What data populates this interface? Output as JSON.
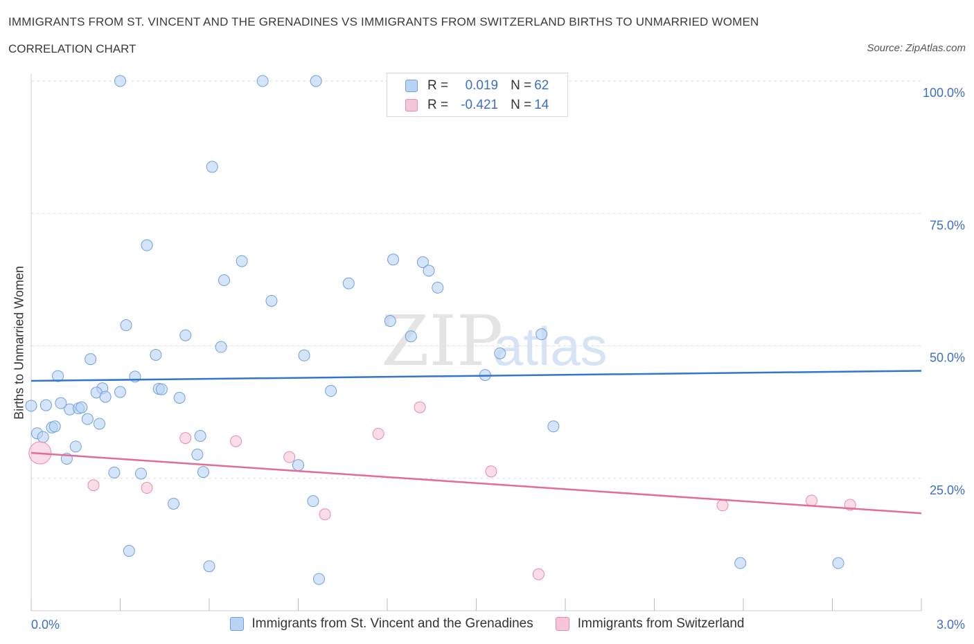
{
  "title": "IMMIGRANTS FROM ST. VINCENT AND THE GRENADINES VS IMMIGRANTS FROM SWITZERLAND BIRTHS TO UNMARRIED WOMEN",
  "subtitle": "CORRELATION CHART",
  "source": "Source: ZipAtlas.com",
  "watermark": {
    "part1": "ZIP",
    "part2": "atlas"
  },
  "legend": {
    "rows": [
      {
        "r_label": "R = ",
        "r_value": "0.019",
        "n_label": "N = ",
        "n_value": "62"
      },
      {
        "r_label": "R = ",
        "r_value": "-0.421",
        "n_label": "N = ",
        "n_value": "14"
      }
    ]
  },
  "colors": {
    "blue_fill": "#b9d3f5",
    "blue_stroke": "#6f9fe0",
    "blue_line": "#3274cf",
    "pink_fill": "#f7c6d6",
    "pink_stroke": "#e98aa8",
    "pink_line": "#e36b95",
    "axis_text": "#3b6fc6",
    "grid": "#dddddd"
  },
  "chart_data": {
    "type": "scatter",
    "title": "IMMIGRANTS FROM ST. VINCENT AND THE GRENADINES VS IMMIGRANTS FROM SWITZERLAND BIRTHS TO UNMARRIED WOMEN",
    "xlabel": "",
    "ylabel": "Births to Unmarried Women",
    "xlim": [
      0,
      3
    ],
    "ylim": [
      0,
      100
    ],
    "x_tick_labels": [
      "0.0%",
      "3.0%"
    ],
    "y_ticks": [
      25,
      50,
      75,
      100
    ],
    "y_tick_labels": [
      "25.0%",
      "50.0%",
      "75.0%",
      "100.0%"
    ],
    "series": [
      {
        "name": "Immigrants from St. Vincent and the Grenadines",
        "color": "blue",
        "trend": {
          "x": [
            0,
            3
          ],
          "y": [
            43.4,
            45.3
          ]
        },
        "points": [
          {
            "x": 0.3,
            "y": 100
          },
          {
            "x": 0.78,
            "y": 100
          },
          {
            "x": 0.96,
            "y": 100
          },
          {
            "x": 0.61,
            "y": 83.8
          },
          {
            "x": 0.39,
            "y": 69.0
          },
          {
            "x": 0.71,
            "y": 66.0
          },
          {
            "x": 1.22,
            "y": 66.3
          },
          {
            "x": 1.32,
            "y": 65.8
          },
          {
            "x": 1.34,
            "y": 64.2
          },
          {
            "x": 0.65,
            "y": 62.4
          },
          {
            "x": 1.07,
            "y": 61.8
          },
          {
            "x": 1.37,
            "y": 61.0
          },
          {
            "x": 0.81,
            "y": 58.5
          },
          {
            "x": 1.21,
            "y": 54.7
          },
          {
            "x": 0.32,
            "y": 53.9
          },
          {
            "x": 0.52,
            "y": 52.0
          },
          {
            "x": 1.28,
            "y": 51.8
          },
          {
            "x": 1.72,
            "y": 52.2
          },
          {
            "x": 0.64,
            "y": 49.8
          },
          {
            "x": 0.42,
            "y": 48.3
          },
          {
            "x": 0.92,
            "y": 48.2
          },
          {
            "x": 1.58,
            "y": 48.6
          },
          {
            "x": 0.2,
            "y": 47.5
          },
          {
            "x": 0.09,
            "y": 44.3
          },
          {
            "x": 0.35,
            "y": 44.2
          },
          {
            "x": 1.53,
            "y": 44.5
          },
          {
            "x": 0.24,
            "y": 42.0
          },
          {
            "x": 0.43,
            "y": 41.9
          },
          {
            "x": 0.44,
            "y": 41.8
          },
          {
            "x": 0.22,
            "y": 41.2
          },
          {
            "x": 0.3,
            "y": 41.3
          },
          {
            "x": 1.01,
            "y": 41.5
          },
          {
            "x": 0.25,
            "y": 40.4
          },
          {
            "x": 0.5,
            "y": 40.2
          },
          {
            "x": 0.1,
            "y": 39.2
          },
          {
            "x": 0.0,
            "y": 38.7
          },
          {
            "x": 0.05,
            "y": 38.8
          },
          {
            "x": 0.13,
            "y": 38.0
          },
          {
            "x": 0.16,
            "y": 38.2
          },
          {
            "x": 0.17,
            "y": 38.4
          },
          {
            "x": 0.19,
            "y": 36.2
          },
          {
            "x": 0.23,
            "y": 35.3
          },
          {
            "x": 0.07,
            "y": 34.6
          },
          {
            "x": 0.08,
            "y": 34.8
          },
          {
            "x": 1.76,
            "y": 34.8
          },
          {
            "x": 0.02,
            "y": 33.5
          },
          {
            "x": 0.04,
            "y": 32.8
          },
          {
            "x": 0.57,
            "y": 33.0
          },
          {
            "x": 0.15,
            "y": 31.0
          },
          {
            "x": 0.56,
            "y": 29.5
          },
          {
            "x": 0.12,
            "y": 28.7
          },
          {
            "x": 0.9,
            "y": 27.5
          },
          {
            "x": 0.28,
            "y": 26.1
          },
          {
            "x": 0.37,
            "y": 25.9
          },
          {
            "x": 0.58,
            "y": 26.2
          },
          {
            "x": 0.48,
            "y": 20.2
          },
          {
            "x": 0.95,
            "y": 20.7
          },
          {
            "x": 0.33,
            "y": 11.3
          },
          {
            "x": 0.6,
            "y": 8.4
          },
          {
            "x": 0.97,
            "y": 6.0
          },
          {
            "x": 2.39,
            "y": 9.0
          },
          {
            "x": 2.72,
            "y": 9.0
          }
        ]
      },
      {
        "name": "Immigrants from Switzerland",
        "color": "pink",
        "trend": {
          "x": [
            0,
            3
          ],
          "y": [
            29.8,
            18.4
          ]
        },
        "points": [
          {
            "x": 0.03,
            "y": 29.8,
            "big": true
          },
          {
            "x": 0.21,
            "y": 23.7
          },
          {
            "x": 0.39,
            "y": 23.2
          },
          {
            "x": 0.52,
            "y": 32.6
          },
          {
            "x": 0.69,
            "y": 32.0
          },
          {
            "x": 0.87,
            "y": 29.0
          },
          {
            "x": 0.99,
            "y": 18.2
          },
          {
            "x": 1.17,
            "y": 33.4
          },
          {
            "x": 1.31,
            "y": 38.4
          },
          {
            "x": 1.55,
            "y": 26.3
          },
          {
            "x": 1.71,
            "y": 6.9
          },
          {
            "x": 2.33,
            "y": 19.9
          },
          {
            "x": 2.63,
            "y": 20.8
          },
          {
            "x": 2.76,
            "y": 20.0
          }
        ]
      }
    ]
  }
}
